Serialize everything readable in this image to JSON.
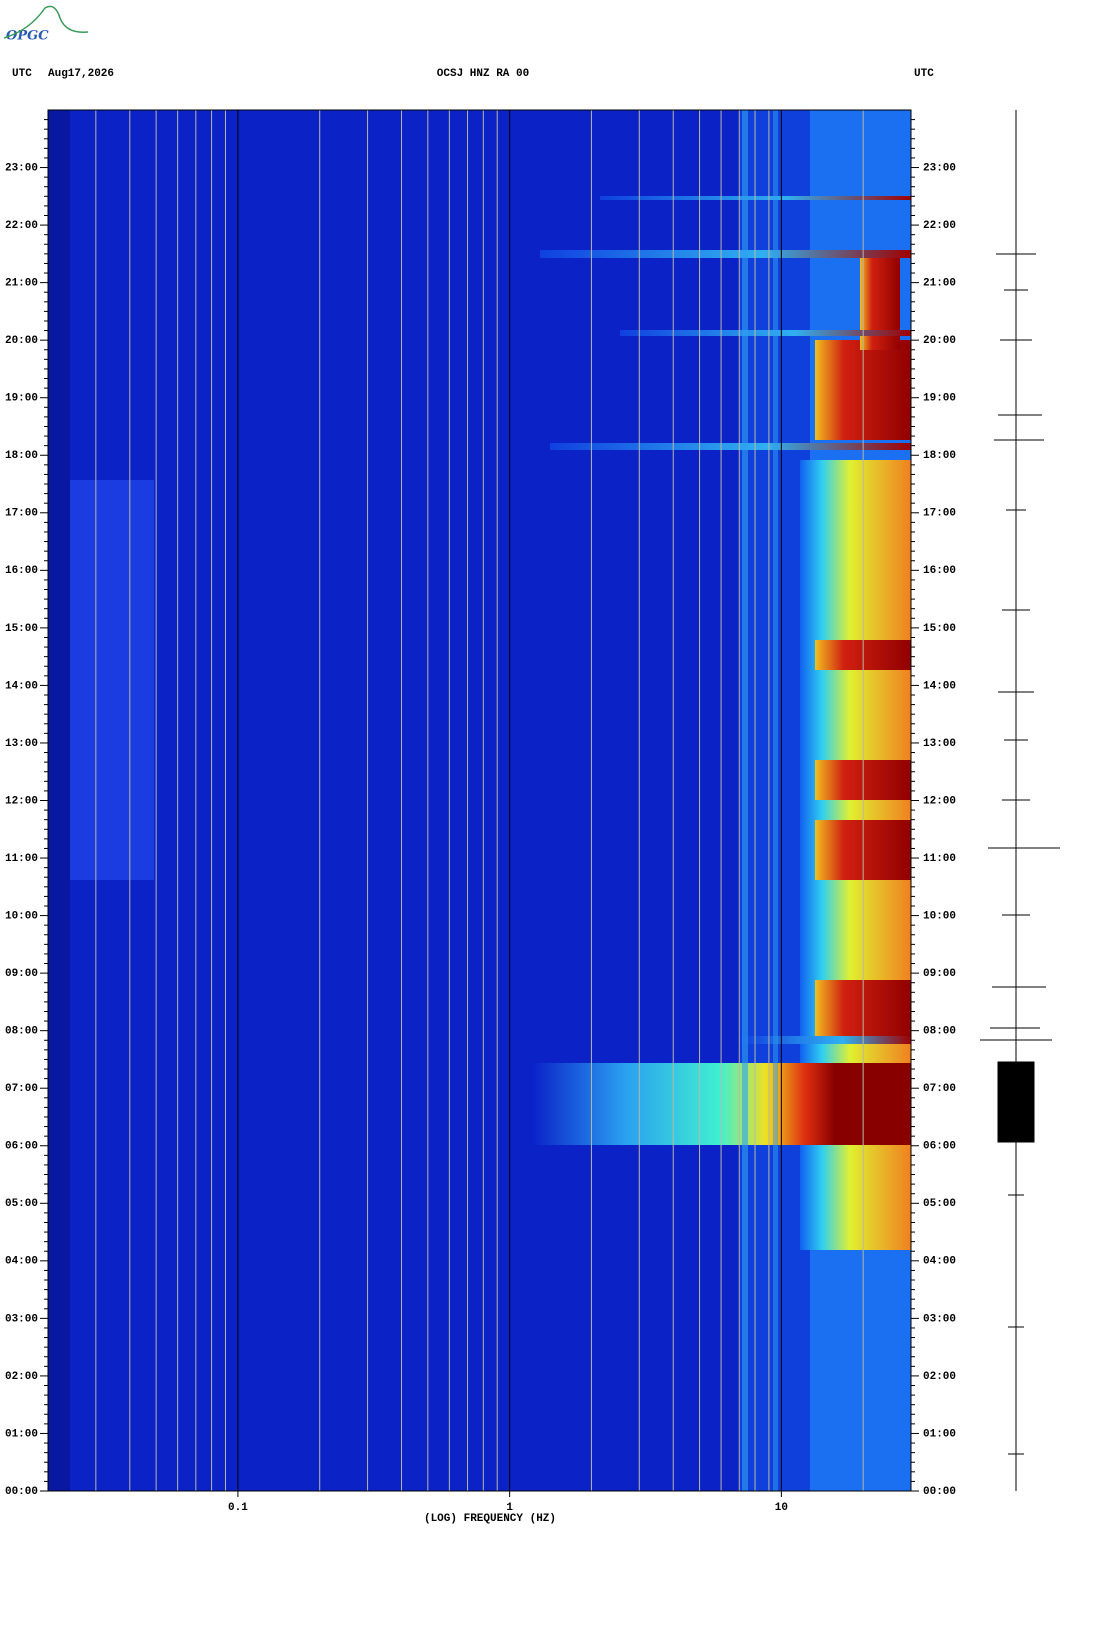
{
  "logo": "OPGC",
  "chart_data": {
    "type": "spectrogram",
    "time_zone": "UTC",
    "date": "Aug17,2026",
    "title": "OCSJ HNZ RA 00",
    "xlabel": "(LOG) FREQUENCY (HZ)",
    "xscale": "log",
    "xlim": [
      0.02,
      30
    ],
    "xticks": [
      0.1,
      1,
      10
    ],
    "ylim": [
      0,
      24
    ],
    "yticks": [
      {
        "value": 0,
        "label": "00:00"
      },
      {
        "value": 1,
        "label": "01:00"
      },
      {
        "value": 2,
        "label": "02:00"
      },
      {
        "value": 3,
        "label": "03:00"
      },
      {
        "value": 4,
        "label": "04:00"
      },
      {
        "value": 5,
        "label": "05:00"
      },
      {
        "value": 6,
        "label": "06:00"
      },
      {
        "value": 7,
        "label": "07:00"
      },
      {
        "value": 8,
        "label": "08:00"
      },
      {
        "value": 9,
        "label": "09:00"
      },
      {
        "value": 10,
        "label": "10:00"
      },
      {
        "value": 11,
        "label": "11:00"
      },
      {
        "value": 12,
        "label": "12:00"
      },
      {
        "value": 13,
        "label": "13:00"
      },
      {
        "value": 14,
        "label": "14:00"
      },
      {
        "value": 15,
        "label": "15:00"
      },
      {
        "value": 16,
        "label": "16:00"
      },
      {
        "value": 17,
        "label": "17:00"
      },
      {
        "value": 18,
        "label": "18:00"
      },
      {
        "value": 19,
        "label": "19:00"
      },
      {
        "value": 20,
        "label": "20:00"
      },
      {
        "value": 21,
        "label": "21:00"
      },
      {
        "value": 22,
        "label": "22:00"
      },
      {
        "value": 23,
        "label": "23:00"
      }
    ]
  }
}
